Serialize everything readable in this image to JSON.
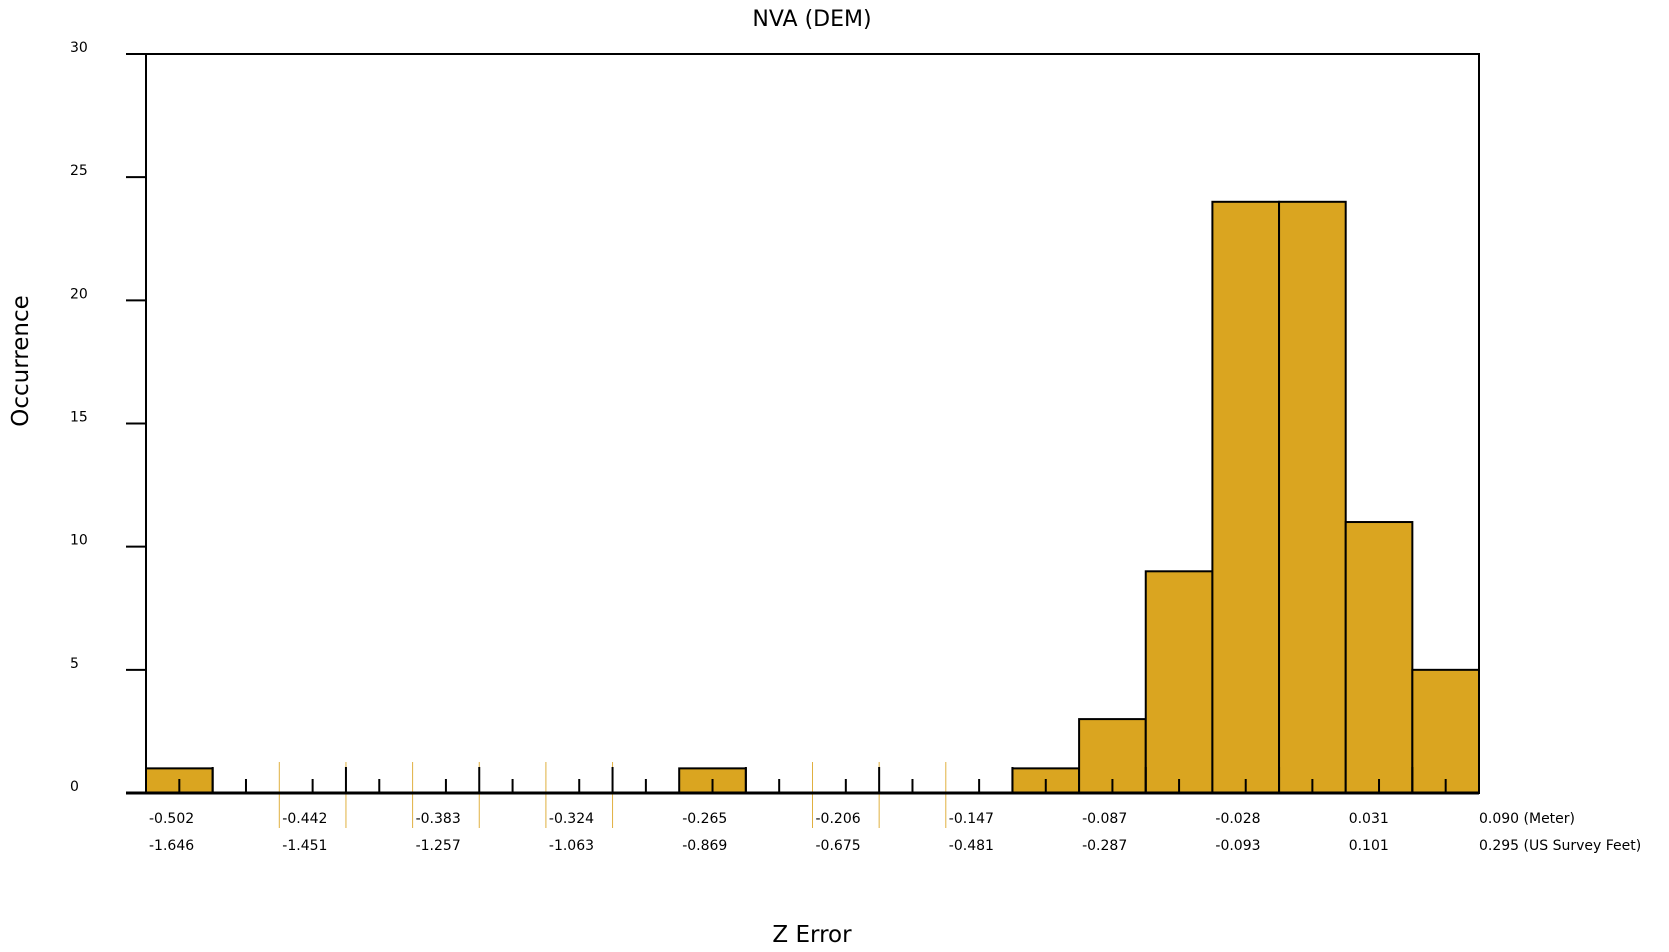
{
  "chart_data": {
    "type": "bar",
    "title": "NVA (DEM)",
    "xlabel": "Z Error",
    "ylabel": "Occurrence",
    "ylim": [
      0,
      30
    ],
    "y_ticks": [
      0,
      5,
      10,
      15,
      20,
      25,
      30
    ],
    "x_range_meter": [
      -0.502,
      0.09
    ],
    "bin_width_meter": 0.0296,
    "bin_edges_meter": [
      -0.502,
      -0.4724,
      -0.4428,
      -0.4132,
      -0.3836,
      -0.354,
      -0.3244,
      -0.2948,
      -0.2652,
      -0.2356,
      -0.206,
      -0.1764,
      -0.1468,
      -0.1172,
      -0.0876,
      -0.058,
      -0.0284,
      0.0012,
      0.0308,
      0.0604,
      0.09
    ],
    "values": [
      1,
      0,
      0,
      0,
      0,
      0,
      0,
      0,
      1,
      0,
      0,
      0,
      0,
      1,
      3,
      9,
      24,
      24,
      11,
      5
    ],
    "bar_color": "#DAA520",
    "bar_edge_color": "#000000",
    "guide_line_color": "#E0B040",
    "x_tick_labels_meter": [
      "-0.502",
      "-0.442",
      "-0.383",
      "-0.324",
      "-0.265",
      "-0.206",
      "-0.147",
      "-0.087",
      "-0.028",
      "0.031",
      "0.090 (Meter)"
    ],
    "x_tick_labels_feet": [
      "-1.646",
      "-1.451",
      "-1.257",
      "-1.063",
      "-0.869",
      "-0.675",
      "-0.481",
      "-0.287",
      "-0.093",
      "0.101",
      "0.295 (US Survey Feet)"
    ],
    "grid": false,
    "legend": "none"
  }
}
